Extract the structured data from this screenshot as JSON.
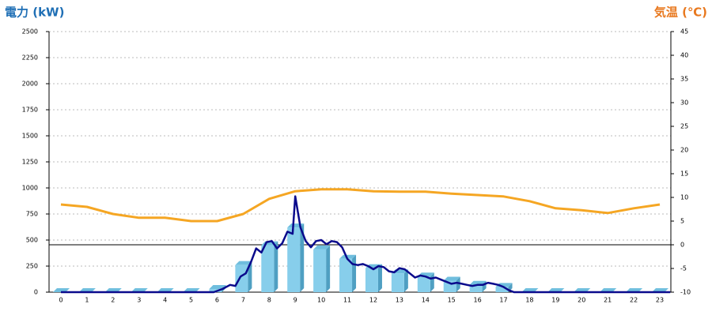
{
  "chart_data": {
    "type": "combo",
    "y_label": "電力 (kW)",
    "y2_label": "気温 (℃)",
    "categories": [
      "0",
      "1",
      "2",
      "3",
      "4",
      "5",
      "6",
      "7",
      "8",
      "9",
      "10",
      "11",
      "12",
      "13",
      "14",
      "15",
      "16",
      "17",
      "18",
      "19",
      "20",
      "21",
      "22",
      "23"
    ],
    "ylim": [
      0,
      2500
    ],
    "yticks": [
      0,
      250,
      500,
      750,
      1000,
      1250,
      1500,
      1750,
      2000,
      2250,
      2500
    ],
    "y2lim": [
      -10,
      45
    ],
    "y2ticks": [
      -10,
      -5,
      0,
      5,
      10,
      15,
      20,
      25,
      30,
      35,
      40,
      45
    ],
    "grid": true,
    "series": [
      {
        "type": "bar",
        "color": "#87ceeb",
        "values": [
          0,
          0,
          0,
          0,
          0,
          0,
          30,
          260,
          450,
          620,
          410,
          320,
          230,
          180,
          150,
          110,
          70,
          50,
          0,
          0,
          0,
          0,
          0,
          0
        ]
      },
      {
        "type": "line",
        "color": "#0a0a8c",
        "x": [
          0,
          5.87,
          6.2,
          6.5,
          6.7,
          6.9,
          7.1,
          7.3,
          7.5,
          7.7,
          7.9,
          8.1,
          8.3,
          8.5,
          8.7,
          8.9,
          9.0,
          9.2,
          9.4,
          9.6,
          9.8,
          10.0,
          10.2,
          10.4,
          10.6,
          10.8,
          11.0,
          11.2,
          11.4,
          11.6,
          11.8,
          12.0,
          12.2,
          12.4,
          12.6,
          12.8,
          13.0,
          13.2,
          13.4,
          13.6,
          13.8,
          14.0,
          14.2,
          14.4,
          14.6,
          14.8,
          15.0,
          15.2,
          15.4,
          15.6,
          15.8,
          16.0,
          16.2,
          16.4,
          16.6,
          16.8,
          17.0,
          17.2,
          17.4,
          23.4
        ],
        "values": [
          0,
          0,
          30,
          70,
          60,
          150,
          180,
          290,
          420,
          380,
          480,
          490,
          420,
          470,
          580,
          560,
          920,
          620,
          490,
          430,
          490,
          500,
          460,
          490,
          480,
          430,
          320,
          270,
          260,
          270,
          250,
          220,
          250,
          240,
          200,
          190,
          230,
          220,
          180,
          140,
          160,
          150,
          130,
          140,
          120,
          100,
          80,
          90,
          80,
          70,
          60,
          70,
          70,
          90,
          80,
          70,
          50,
          20,
          0,
          0
        ]
      },
      {
        "type": "line",
        "axis": "y2",
        "color": "#f5a623",
        "x": [
          0,
          1,
          2,
          3,
          4,
          5,
          6,
          7,
          8,
          9,
          10,
          11,
          12,
          13,
          14,
          15,
          16,
          17,
          18,
          19,
          20,
          21,
          22,
          23
        ],
        "values": [
          8.5,
          8,
          6.5,
          5.7,
          5.7,
          5,
          5,
          6.5,
          9.7,
          11.3,
          11.7,
          11.7,
          11.3,
          11.2,
          11.2,
          10.8,
          10.5,
          10.2,
          9.2,
          7.7,
          7.3,
          6.7,
          7.7,
          8.5
        ]
      }
    ]
  }
}
